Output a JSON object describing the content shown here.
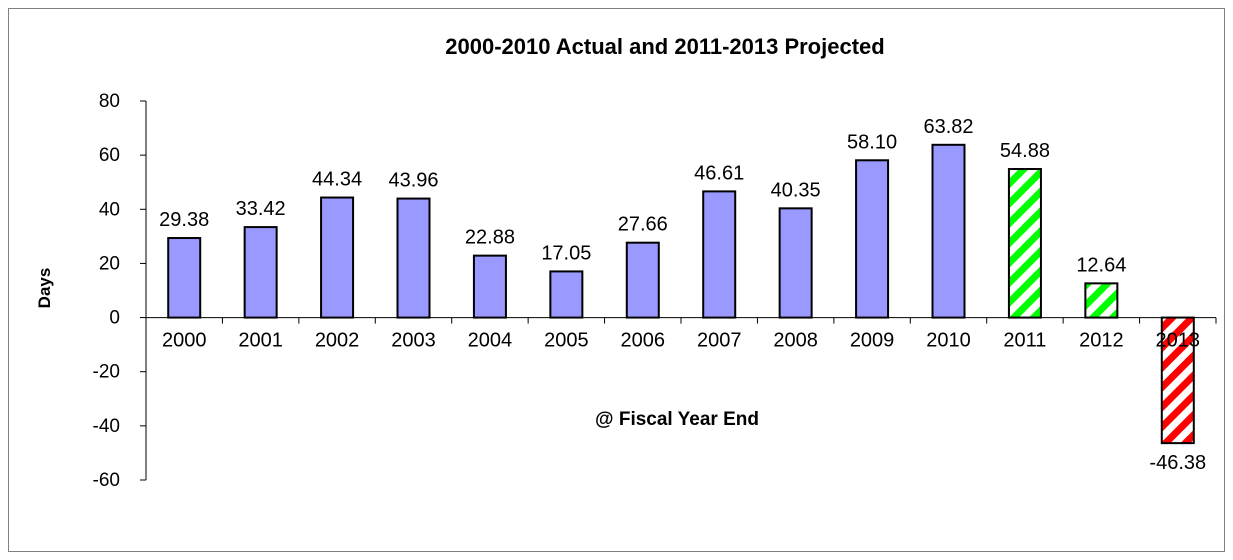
{
  "chart_data": {
    "type": "bar",
    "title": "2000-2010 Actual and 2011-2013 Projected",
    "xlabel": "@ Fiscal Year End",
    "ylabel": "Days",
    "ylim": [
      -60,
      80
    ],
    "yticks": [
      80,
      60,
      40,
      20,
      0,
      -20,
      -40,
      -60
    ],
    "categories": [
      "2000",
      "2001",
      "2002",
      "2003",
      "2004",
      "2005",
      "2006",
      "2007",
      "2008",
      "2009",
      "2010",
      "2011",
      "2012",
      "2013"
    ],
    "values": [
      29.38,
      33.42,
      44.34,
      43.96,
      22.88,
      17.05,
      27.66,
      46.61,
      40.35,
      58.1,
      63.82,
      54.88,
      12.64,
      -46.38
    ],
    "data_labels": [
      "29.38",
      "33.42",
      "44.34",
      "43.96",
      "22.88",
      "17.05",
      "27.66",
      "46.61",
      "40.35",
      "58.10",
      "63.82",
      "54.88",
      "12.64",
      "-46.38"
    ],
    "fills": [
      "solid",
      "solid",
      "solid",
      "solid",
      "solid",
      "solid",
      "solid",
      "solid",
      "solid",
      "solid",
      "solid",
      "hatch-green",
      "hatch-green",
      "hatch-red"
    ],
    "grid": false,
    "legend": "none",
    "colors": {
      "actual": "#9999ff",
      "projected_positive": "#00ff00",
      "projected_negative": "#ff0000",
      "outline": "#000000"
    }
  }
}
